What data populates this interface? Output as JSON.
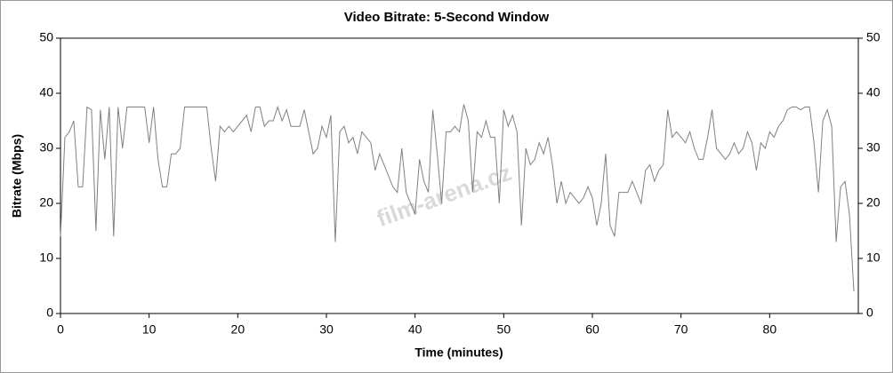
{
  "chart_data": {
    "type": "line",
    "title": "Video Bitrate: 5-Second Window",
    "xlabel": "Time (minutes)",
    "ylabel": "Bitrate (Mbps)",
    "watermark": "film-arena.cz",
    "xlim": [
      0,
      90
    ],
    "xticks": [
      0,
      10,
      20,
      30,
      40,
      50,
      60,
      70,
      80
    ],
    "ylim": [
      0,
      50
    ],
    "yticks": [
      0,
      10,
      20,
      30,
      40,
      50
    ],
    "y2lim": [
      0,
      50
    ],
    "y2ticks": [
      0,
      10,
      20,
      30,
      40,
      50
    ],
    "grid": false,
    "x": [
      0,
      0.5,
      1,
      1.5,
      2,
      2.5,
      3,
      3.5,
      4,
      4.5,
      5,
      5.5,
      6,
      6.5,
      7,
      7.5,
      8,
      8.5,
      9,
      9.5,
      10,
      10.5,
      11,
      11.5,
      12,
      12.5,
      13,
      13.5,
      14,
      14.5,
      15,
      15.5,
      16,
      16.5,
      17,
      17.5,
      18,
      18.5,
      19,
      19.5,
      20,
      20.5,
      21,
      21.5,
      22,
      22.5,
      23,
      23.5,
      24,
      24.5,
      25,
      25.5,
      26,
      26.5,
      27,
      27.5,
      28,
      28.5,
      29,
      29.5,
      30,
      30.5,
      31,
      31.5,
      32,
      32.5,
      33,
      33.5,
      34,
      34.5,
      35,
      35.5,
      36,
      36.5,
      37,
      37.5,
      38,
      38.5,
      39,
      39.5,
      40,
      40.5,
      41,
      41.5,
      42,
      42.5,
      43,
      43.5,
      44,
      44.5,
      45,
      45.5,
      46,
      46.5,
      47,
      47.5,
      48,
      48.5,
      49,
      49.5,
      50,
      50.5,
      51,
      51.5,
      52,
      52.5,
      53,
      53.5,
      54,
      54.5,
      55,
      55.5,
      56,
      56.5,
      57,
      57.5,
      58,
      58.5,
      59,
      59.5,
      60,
      60.5,
      61,
      61.5,
      62,
      62.5,
      63,
      63.5,
      64,
      64.5,
      65,
      65.5,
      66,
      66.5,
      67,
      67.5,
      68,
      68.5,
      69,
      69.5,
      70,
      70.5,
      71,
      71.5,
      72,
      72.5,
      73,
      73.5,
      74,
      74.5,
      75,
      75.5,
      76,
      76.5,
      77,
      77.5,
      78,
      78.5,
      79,
      79.5,
      80,
      80.5,
      81,
      81.5,
      82,
      82.5,
      83,
      83.5,
      84,
      84.5,
      85,
      85.5,
      86,
      86.5,
      87,
      87.5,
      88,
      88.5,
      89,
      89.5
    ],
    "series": [
      {
        "color": "#808080",
        "values": [
          14,
          32,
          33,
          35,
          23,
          23,
          37.5,
          37,
          15,
          37,
          28,
          37.5,
          14,
          37.5,
          30,
          37.5,
          37.5,
          37.5,
          37.5,
          37.5,
          31,
          37.5,
          28,
          23,
          23,
          29,
          29,
          30,
          37.5,
          37.5,
          37.5,
          37.5,
          37.5,
          37.5,
          30,
          24,
          34,
          33,
          34,
          33,
          34,
          35,
          36,
          33,
          37.5,
          37.5,
          34,
          35,
          35,
          37.5,
          35,
          37,
          34,
          34,
          34,
          37,
          33,
          29,
          30,
          34,
          32,
          36,
          13,
          33,
          34,
          31,
          32,
          29,
          33,
          32,
          31,
          26,
          29,
          27,
          25,
          23,
          22,
          30,
          22,
          20,
          18,
          28,
          24,
          22,
          37,
          29,
          20,
          33,
          33,
          34,
          33,
          38,
          35,
          22,
          33,
          32,
          35,
          32,
          32,
          20,
          37,
          34,
          36,
          33,
          16,
          30,
          27,
          28,
          31,
          29,
          32,
          27,
          20,
          24,
          20,
          22,
          21,
          20,
          21,
          23,
          21,
          16,
          20,
          29,
          16,
          14,
          22,
          22,
          22,
          24,
          22,
          20,
          26,
          27,
          24,
          26,
          27,
          37,
          32,
          33,
          32,
          31,
          33,
          30,
          28,
          28,
          32,
          37,
          30,
          29,
          28,
          29,
          31,
          29,
          30,
          33,
          31,
          26,
          31,
          30,
          33,
          32,
          34,
          35,
          37,
          37.5,
          37.5,
          37,
          37.5,
          37.5,
          31,
          22,
          35,
          37,
          34,
          13,
          23,
          24,
          18,
          4
        ]
      }
    ]
  }
}
